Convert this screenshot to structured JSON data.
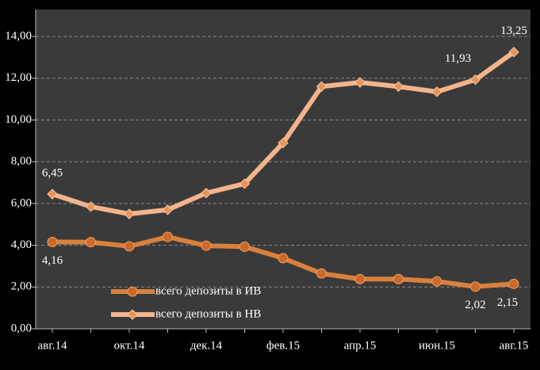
{
  "chart_data": {
    "type": "line",
    "categories": [
      "авг.14",
      null,
      "окт.14",
      null,
      "дек.14",
      null,
      "фев.15",
      null,
      "апр.15",
      null,
      "июн.15",
      null,
      "авг.15"
    ],
    "series": [
      {
        "name": "всего депозиты в ИВ",
        "color": "#d9803e",
        "marker": "circle",
        "values": [
          4.16,
          4.15,
          3.95,
          4.4,
          3.98,
          3.93,
          3.38,
          2.65,
          2.38,
          2.38,
          2.27,
          2.02,
          2.15
        ],
        "value_labels": [
          "4,16",
          null,
          null,
          null,
          null,
          null,
          null,
          null,
          null,
          null,
          null,
          "2,02",
          "2,15"
        ]
      },
      {
        "name": "всего депозиты в НВ",
        "color": "#f3b48c",
        "marker": "diamond",
        "values": [
          6.45,
          5.85,
          5.5,
          5.7,
          6.5,
          6.95,
          8.9,
          11.6,
          11.8,
          11.6,
          11.35,
          11.93,
          13.25
        ],
        "value_labels": [
          "6,45",
          null,
          null,
          null,
          null,
          null,
          null,
          null,
          null,
          null,
          null,
          "11,93",
          "13,25"
        ]
      }
    ],
    "ylim": [
      0,
      14
    ],
    "yticks": [
      {
        "value": 0,
        "label": "0,00"
      },
      {
        "value": 2,
        "label": "2,00"
      },
      {
        "value": 4,
        "label": "4,00"
      },
      {
        "value": 6,
        "label": "6,00"
      },
      {
        "value": 8,
        "label": "8,00"
      },
      {
        "value": 10,
        "label": "10,00"
      },
      {
        "value": 12,
        "label": "12,00"
      },
      {
        "value": 14,
        "label": "14,00"
      }
    ],
    "grid": true
  }
}
